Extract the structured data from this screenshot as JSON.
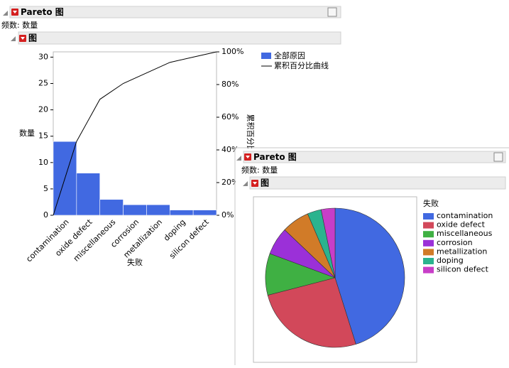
{
  "chart_data": [
    {
      "type": "pareto",
      "header": "Pareto 图",
      "subtitle": "频数: 数量",
      "section": "图",
      "x_label": "失败",
      "y_label": "数量",
      "y2_label": "累积百分比",
      "categories": [
        "contamination",
        "oxide defect",
        "miscellaneous",
        "corrosion",
        "metallization",
        "doping",
        "silicon defect"
      ],
      "series": [
        {
          "name": "全部原因",
          "color": "#4169e1",
          "values": [
            14,
            8,
            3,
            2,
            2,
            1,
            1
          ]
        },
        {
          "name": "累积百分比曲线",
          "color": "#000000",
          "axis": "y2"
        }
      ],
      "ylim": [
        0,
        31
      ],
      "yticks": [
        0,
        5,
        10,
        15,
        20,
        25,
        30
      ],
      "y2lim": [
        0,
        100
      ],
      "y2ticks": [
        {
          "value": 0,
          "label": "0%"
        },
        {
          "value": 20,
          "label": "20%"
        },
        {
          "value": 40,
          "label": "40%"
        },
        {
          "value": 60,
          "label": "60%"
        },
        {
          "value": 80,
          "label": "80%"
        },
        {
          "value": 100,
          "label": "100%"
        }
      ]
    },
    {
      "type": "pie",
      "header": "Pareto 图",
      "subtitle": "频数: 数量",
      "section": "图",
      "legend_title": "失败",
      "categories": [
        "contamination",
        "oxide defect",
        "miscellaneous",
        "corrosion",
        "metallization",
        "doping",
        "silicon defect"
      ],
      "values": [
        14,
        8,
        3,
        2,
        2,
        1,
        1
      ],
      "colors": [
        "#4169e1",
        "#d2485a",
        "#3fb043",
        "#9b30d8",
        "#d17b28",
        "#2bb38e",
        "#c83ec8"
      ]
    }
  ]
}
